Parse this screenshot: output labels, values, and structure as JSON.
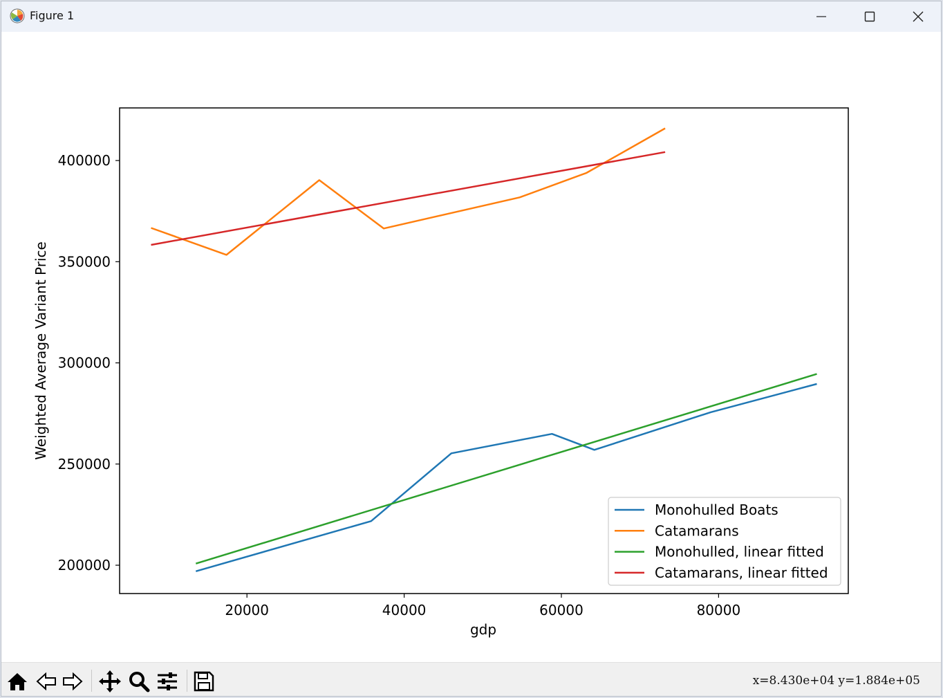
{
  "window": {
    "title": "Figure 1",
    "icons": {
      "app": "matplotlib-logo-icon",
      "minimize": "minimize-icon",
      "maximize": "maximize-icon",
      "close": "close-icon"
    }
  },
  "toolbar": {
    "tools": [
      "home-icon",
      "back-arrow-icon",
      "forward-arrow-icon",
      "pan-move-icon",
      "zoom-magnifier-icon",
      "configure-subplots-icon",
      "save-floppy-icon"
    ],
    "coords": "x=8.430e+04  y=1.884e+05"
  },
  "chart_data": {
    "type": "line",
    "title": "",
    "xlabel": "gdp",
    "ylabel": "Weighted Average Variant Price",
    "xlim": [
      3800,
      96500
    ],
    "ylim": [
      186000,
      426000
    ],
    "xticks": [
      20000,
      40000,
      60000,
      80000
    ],
    "yticks": [
      200000,
      250000,
      300000,
      350000,
      400000
    ],
    "xtick_labels": [
      "20000",
      "40000",
      "60000",
      "80000"
    ],
    "ytick_labels": [
      "200000",
      "250000",
      "300000",
      "350000",
      "400000"
    ],
    "grid": false,
    "legend_position": "lower-right",
    "series": [
      {
        "name": "Monohulled Boats",
        "color": "#1f77b4",
        "x": [
          13500,
          35800,
          46000,
          58800,
          64200,
          79000,
          92500
        ],
        "y": [
          197000,
          221800,
          255300,
          264900,
          257000,
          275600,
          289600
        ]
      },
      {
        "name": "Catamarans",
        "color": "#ff7f0e",
        "x": [
          7800,
          17400,
          29200,
          37400,
          54700,
          63200,
          73200
        ],
        "y": [
          366700,
          353400,
          390300,
          366400,
          381800,
          393900,
          415900
        ]
      },
      {
        "name": "Monohulled, linear fitted",
        "color": "#2ca02c",
        "x": [
          13500,
          92500
        ],
        "y": [
          200800,
          294500
        ]
      },
      {
        "name": "Catamarans, linear fitted",
        "color": "#d62728",
        "x": [
          7800,
          73200
        ],
        "y": [
          358300,
          404200
        ]
      }
    ]
  }
}
